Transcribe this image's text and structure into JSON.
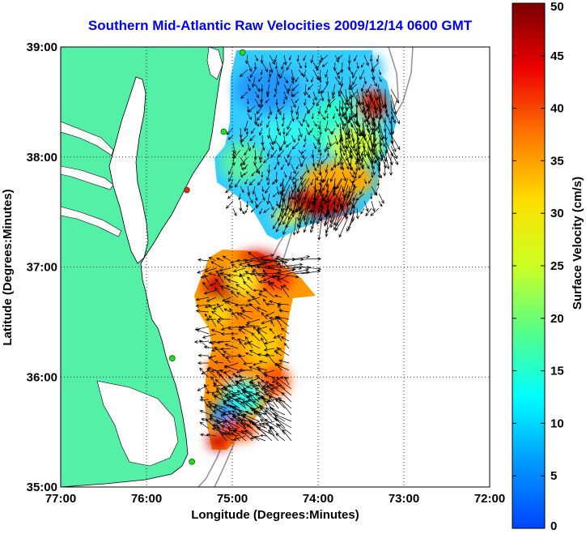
{
  "title": "Southern Mid-Atlantic Raw Velocities 2009/12/14 0600 GMT",
  "map": {
    "xlabel": "Longitude (Degrees:Minutes)",
    "ylabel": "Latitude (Degrees:Minutes)",
    "lon_range": [
      -77,
      -72
    ],
    "lat_range": [
      35,
      39
    ],
    "lon_ticks": [
      {
        "value": -77,
        "label": "77:00"
      },
      {
        "value": -76,
        "label": "76:00"
      },
      {
        "value": -75,
        "label": "75:00"
      },
      {
        "value": -74,
        "label": "74:00"
      },
      {
        "value": -73,
        "label": "73:00"
      },
      {
        "value": -72,
        "label": "72:00"
      }
    ],
    "lat_ticks": [
      {
        "value": 35,
        "label": "35:00"
      },
      {
        "value": 36,
        "label": "36:00"
      },
      {
        "value": 37,
        "label": "37:00"
      },
      {
        "value": 38,
        "label": "38:00"
      },
      {
        "value": 39,
        "label": "39:00"
      }
    ],
    "grid": "dotted",
    "colors": {
      "land": "#55f0a8",
      "water": "#ffffff",
      "coastline": "#000000",
      "bathymetry": "#909090",
      "vectors": "#000000",
      "station_green": "#22dd22",
      "station_red": "#ee2222"
    }
  },
  "colorbar": {
    "label": "Surface Velocity (cm/s)",
    "min": 0,
    "max": 50,
    "colormap": "jet",
    "ticks": [
      {
        "value": 0,
        "label": "0"
      },
      {
        "value": 5,
        "label": "5"
      },
      {
        "value": 10,
        "label": "10"
      },
      {
        "value": 15,
        "label": "15"
      },
      {
        "value": 20,
        "label": "20"
      },
      {
        "value": 25,
        "label": "25"
      },
      {
        "value": 30,
        "label": "30"
      },
      {
        "value": 35,
        "label": "35"
      },
      {
        "value": 40,
        "label": "40"
      },
      {
        "value": 45,
        "label": "45"
      },
      {
        "value": 50,
        "label": "50"
      }
    ]
  },
  "chart_data": {
    "type": "heatmap",
    "title": "Southern Mid-Atlantic Raw Velocities 2009/12/14 0600 GMT",
    "xlabel": "Longitude (Degrees:Minutes)",
    "ylabel": "Latitude (Degrees:Minutes)",
    "xlim": [
      -77,
      -72
    ],
    "ylim": [
      35,
      39
    ],
    "colorbar": {
      "label": "Surface Velocity (cm/s)",
      "range": [
        0,
        50
      ]
    },
    "regions": [
      {
        "name_hint": "northern",
        "lon_range": [
          -75.2,
          -73.1
        ],
        "lat_range": [
          37.5,
          39.0
        ],
        "speed_range_cm_s": [
          2,
          50
        ]
      },
      {
        "name_hint": "southern",
        "lon_range": [
          -75.5,
          -73.8
        ],
        "lat_range": [
          35.4,
          37.1
        ],
        "speed_range_cm_s": [
          5,
          45
        ]
      }
    ],
    "stations": [
      {
        "lon": -74.88,
        "lat": 38.95,
        "color": "green"
      },
      {
        "lon": -75.1,
        "lat": 38.23,
        "color": "green"
      },
      {
        "lon": -75.53,
        "lat": 37.7,
        "color": "red"
      },
      {
        "lon": -75.7,
        "lat": 36.17,
        "color": "green"
      },
      {
        "lon": -75.47,
        "lat": 35.23,
        "color": "green"
      }
    ]
  }
}
